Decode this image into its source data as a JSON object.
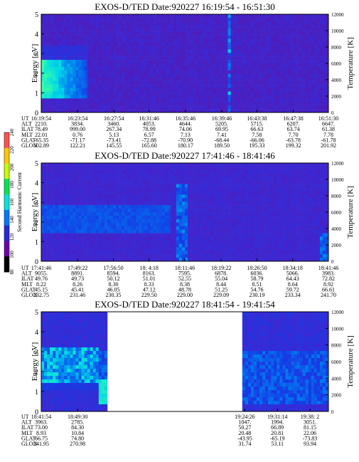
{
  "chart_data": [
    {
      "type": "heatmap",
      "title": "EXOS-D/TED   Date:920227   16:19:54 - 16:51:30",
      "ylabel": "Energy [eV]",
      "y2label": "Temperature [K]",
      "ylim": [
        0,
        5
      ],
      "y_ticks": [
        "0",
        "1",
        "2",
        "3",
        "4",
        "5"
      ],
      "y2lim": [
        0,
        12000
      ],
      "y2_ticks": [
        "0",
        "2000",
        "4000",
        "6000",
        "8000",
        "10000",
        "12000"
      ],
      "x_ticks": [
        "16:19:54",
        "16:23:54",
        "16:27:54",
        "16:31:46",
        "16:35:46",
        "16:39:46",
        "16:43:38",
        "16:47:38",
        "16:51:30"
      ],
      "data_gap": null,
      "ephemeris": [
        {
          "label": "UT",
          "values": [
            "16:19:54",
            "16:23:54",
            "16:27:54",
            "16:31:46",
            "16:35:46",
            "16:39:46",
            "16:43:38",
            "16:47:38",
            "16:51:30"
          ]
        },
        {
          "label": "ALT",
          "values": [
            "2210.",
            "3834.",
            "3460.",
            "4053.",
            "4644.",
            "5205.",
            "5715.",
            "6207.",
            "6647."
          ]
        },
        {
          "label": "ILAT",
          "values": [
            "78.49",
            "999.00",
            "267.34",
            "78.99",
            "74.06",
            "69.95",
            "66.63",
            "63.74",
            "61.38"
          ]
        },
        {
          "label": "MLT",
          "values": [
            "22.01",
            "0.76",
            "5.13",
            "6.57",
            "7.13",
            "7.41",
            "7.58",
            "7.70",
            "7.78"
          ]
        },
        {
          "label": "GLAT",
          "values": [
            "-65.35",
            "-71.17",
            "-73.41",
            "-72.88",
            "-70.90",
            "-68.44",
            "-66.06",
            "-63.78",
            "-61.78"
          ]
        },
        {
          "label": "GLON",
          "values": [
            "102.89",
            "122.21",
            "145.55",
            "165.60",
            "180.17",
            "189.50",
            "195.33",
            "199.32",
            "201.92"
          ]
        }
      ]
    },
    {
      "type": "heatmap",
      "title": "EXOS-D/TED   Date:920227   17:41:46 - 18:41:46",
      "ylabel": "Energy [eV]",
      "y2label": "Temperature [K]",
      "ylim": [
        0,
        5
      ],
      "y_ticks": [
        "0",
        "1",
        "2",
        "3",
        "4",
        "5"
      ],
      "y2lim": [
        0,
        12000
      ],
      "y2_ticks": [
        "0",
        "2000",
        "4000",
        "6000",
        "8000",
        "10000",
        "12000"
      ],
      "x_ticks": [
        "17:41:46",
        "17:49:22",
        "17:56:50",
        "18: 4:18",
        "18:11:46",
        "18:19:22",
        "18:26:50",
        "18:34:18",
        "18:41:46"
      ],
      "data_gap": null,
      "ephemeris": [
        {
          "label": "UT",
          "values": [
            "17:41:46",
            "17:49:22",
            "17:56:50",
            "18: 4:18",
            "18:11:46",
            "18:19:22",
            "18:26:50",
            "18:34:18",
            "18:41:46"
          ]
        },
        {
          "label": "ALT",
          "values": [
            "9055.",
            "8891.",
            "8594.",
            "8163.",
            "7595.",
            "6878.",
            "6036.",
            "5066.",
            "3983."
          ]
        },
        {
          "label": "ILAT",
          "values": [
            "49.76",
            "49.73",
            "50.12",
            "51.01",
            "52.55",
            "55.04",
            "58.79",
            "64.43",
            "72.82"
          ]
        },
        {
          "label": "MLT",
          "values": [
            "8.22",
            "8.26",
            "8.30",
            "8.33",
            "8.38",
            "8.44",
            "8.51",
            "8.64",
            "8.92"
          ]
        },
        {
          "label": "GLAT",
          "values": [
            "45.15",
            "45.41",
            "46.05",
            "47.12",
            "48.78",
            "51.25",
            "54.76",
            "59.72",
            "66.61"
          ]
        },
        {
          "label": "GLON",
          "values": [
            "232.75",
            "231.46",
            "230.35",
            "229.50",
            "229.00",
            "229.09",
            "230.19",
            "233.34",
            "241.70"
          ]
        }
      ],
      "colorbar": {
        "label": "Second Harmonic Current",
        "ticks": [
          "80",
          "100",
          "120",
          "140",
          "160",
          "180",
          "200",
          "220",
          "240"
        ]
      }
    },
    {
      "type": "heatmap",
      "title": "EXOS-D/TED   Date:920227   18:41:54 - 19:41:54",
      "ylabel": "Energy [eV]",
      "y2label": "Temperature [K]",
      "ylim": [
        0,
        5
      ],
      "y_ticks": [
        "0",
        "1",
        "2",
        "3",
        "4",
        "5"
      ],
      "y2lim": [
        0,
        12000
      ],
      "y2_ticks": [
        "0",
        "2000",
        "4000",
        "6000",
        "8000",
        "10000",
        "12000"
      ],
      "x_ticks": [
        "18:41:54",
        "18:49:30",
        "19:24:26",
        "19:31:14",
        "19:38: 2"
      ],
      "data_gap": [
        "18:56:00",
        "19:23:30"
      ],
      "ephemeris": [
        {
          "label": "UT",
          "values": [
            "18:41:54",
            "18:49:30",
            "19:24:26",
            "19:31:14",
            "19:38: 2"
          ]
        },
        {
          "label": "ALT",
          "values": [
            "3963.",
            "2785.",
            "1047.",
            "1994.",
            "3051."
          ]
        },
        {
          "label": "ILAT",
          "values": [
            "73.00",
            "84.30",
            "50.27",
            "66.89",
            "81.15"
          ]
        },
        {
          "label": "MLT",
          "values": [
            "8.93",
            "10.84",
            "20.48",
            "20.81",
            "22.06"
          ]
        },
        {
          "label": "GLAT",
          "values": [
            "66.75",
            "74.80",
            "-43.95",
            "-65.19",
            "-73.83"
          ]
        },
        {
          "label": "GLON",
          "values": [
            "241.95",
            "270.98",
            "31.74",
            "53.11",
            "93.94"
          ]
        }
      ]
    }
  ]
}
